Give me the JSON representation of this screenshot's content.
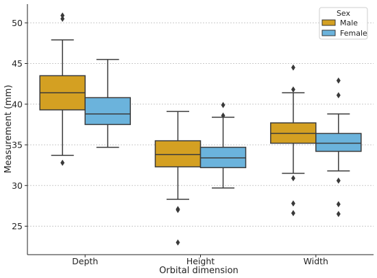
{
  "chart_data": {
    "type": "box",
    "xlabel": "Orbital dimension",
    "ylabel": "Measurement (mm)",
    "ylim": [
      21.5,
      52.3
    ],
    "yticks": [
      25,
      30,
      35,
      40,
      45,
      50
    ],
    "categories": [
      "Depth",
      "Height",
      "Width"
    ],
    "grid": "horizontal dotted",
    "legend": {
      "title": "Sex",
      "placement": "top-right",
      "entries": [
        "Male",
        "Female"
      ]
    },
    "series": [
      {
        "name": "Male",
        "color": "#D4A022",
        "boxes": [
          {
            "category": "Depth",
            "whisker_low": 33.7,
            "q1": 39.3,
            "median": 41.4,
            "q3": 43.5,
            "whisker_high": 47.9,
            "outliers": [
              32.8,
              50.5,
              50.9
            ]
          },
          {
            "category": "Height",
            "whisker_low": 28.3,
            "q1": 32.3,
            "median": 33.8,
            "q3": 35.5,
            "whisker_high": 39.1,
            "outliers": [
              27.0,
              27.1,
              23.0
            ]
          },
          {
            "category": "Width",
            "whisker_low": 31.5,
            "q1": 35.2,
            "median": 36.4,
            "q3": 37.7,
            "whisker_high": 41.4,
            "outliers": [
              44.5,
              41.8,
              30.9,
              27.8,
              26.6
            ]
          }
        ]
      },
      {
        "name": "Female",
        "color": "#6BB3DC",
        "boxes": [
          {
            "category": "Depth",
            "whisker_low": 34.7,
            "q1": 37.5,
            "median": 38.8,
            "q3": 40.8,
            "whisker_high": 45.5,
            "outliers": []
          },
          {
            "category": "Height",
            "whisker_low": 29.7,
            "q1": 32.2,
            "median": 33.4,
            "q3": 34.7,
            "whisker_high": 38.4,
            "outliers": [
              39.9,
              38.6
            ]
          },
          {
            "category": "Width",
            "whisker_low": 31.8,
            "q1": 34.2,
            "median": 35.2,
            "q3": 36.4,
            "whisker_high": 38.8,
            "outliers": [
              42.9,
              41.1,
              30.6,
              27.7,
              26.5
            ]
          }
        ]
      }
    ]
  }
}
